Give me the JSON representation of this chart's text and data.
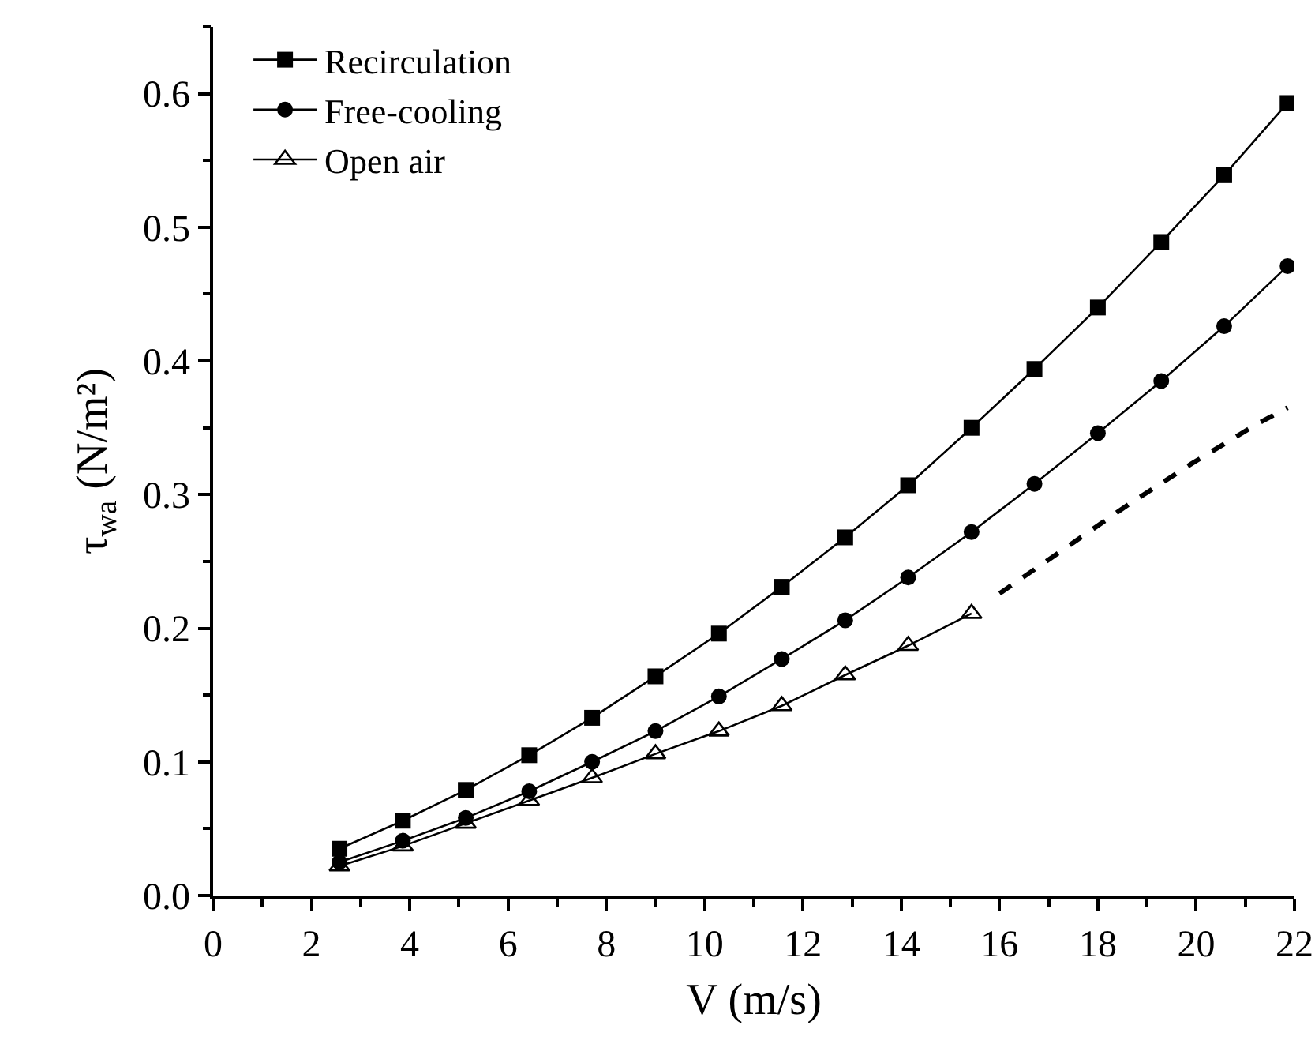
{
  "chart_data": {
    "type": "line",
    "xlabel": "V (m/s)",
    "ylabel": "τ$_{wa}$ (N/m²)",
    "xlim": [
      0,
      22
    ],
    "xticks": [
      0,
      2,
      4,
      6,
      8,
      10,
      12,
      14,
      16,
      18,
      20,
      22
    ],
    "ylim": [
      0,
      0.65
    ],
    "yticks": [
      {
        "value": 0,
        "label": "0.0"
      },
      0.1,
      0.2,
      0.3,
      0.4,
      0.5,
      0.6
    ],
    "x": [
      2.57,
      3.86,
      5.14,
      6.43,
      7.71,
      9.0,
      10.29,
      11.57,
      12.86,
      14.14,
      15.43,
      16.71,
      18.0,
      19.29,
      20.57,
      21.86
    ],
    "grid": false,
    "legend": "top left",
    "series": [
      {
        "name": "Recirculation",
        "color": "#000000",
        "marker": "square",
        "line_style": "solid",
        "values": [
          0.035,
          0.056,
          0.079,
          0.105,
          0.133,
          0.164,
          0.196,
          0.231,
          0.268,
          0.307,
          0.35,
          0.394,
          0.44,
          0.489,
          0.539,
          0.593
        ]
      },
      {
        "name": "Free-cooling",
        "color": "#000000",
        "marker": "circle",
        "line_style": "solid",
        "values": [
          0.025,
          0.041,
          0.058,
          0.078,
          0.1,
          0.123,
          0.149,
          0.177,
          0.206,
          0.238,
          0.272,
          0.308,
          0.346,
          0.385,
          0.426,
          0.471
        ]
      },
      {
        "name": "Open air",
        "color": "#000000",
        "marker": "triangle",
        "line_style": "solid",
        "values": [
          0.022,
          0.037,
          0.054,
          0.071,
          0.088,
          0.106,
          0.123,
          0.142,
          0.165,
          0.187,
          0.211,
          null,
          null,
          null,
          null,
          null
        ]
      },
      {
        "color": "#000000",
        "marker": "none",
        "line_style": "dashed",
        "x": [
          16.0,
          17.3,
          18.6,
          19.9,
          21.2,
          21.86
        ],
        "values": [
          0.226,
          0.259,
          0.292,
          0.323,
          0.352,
          0.365
        ]
      }
    ]
  }
}
